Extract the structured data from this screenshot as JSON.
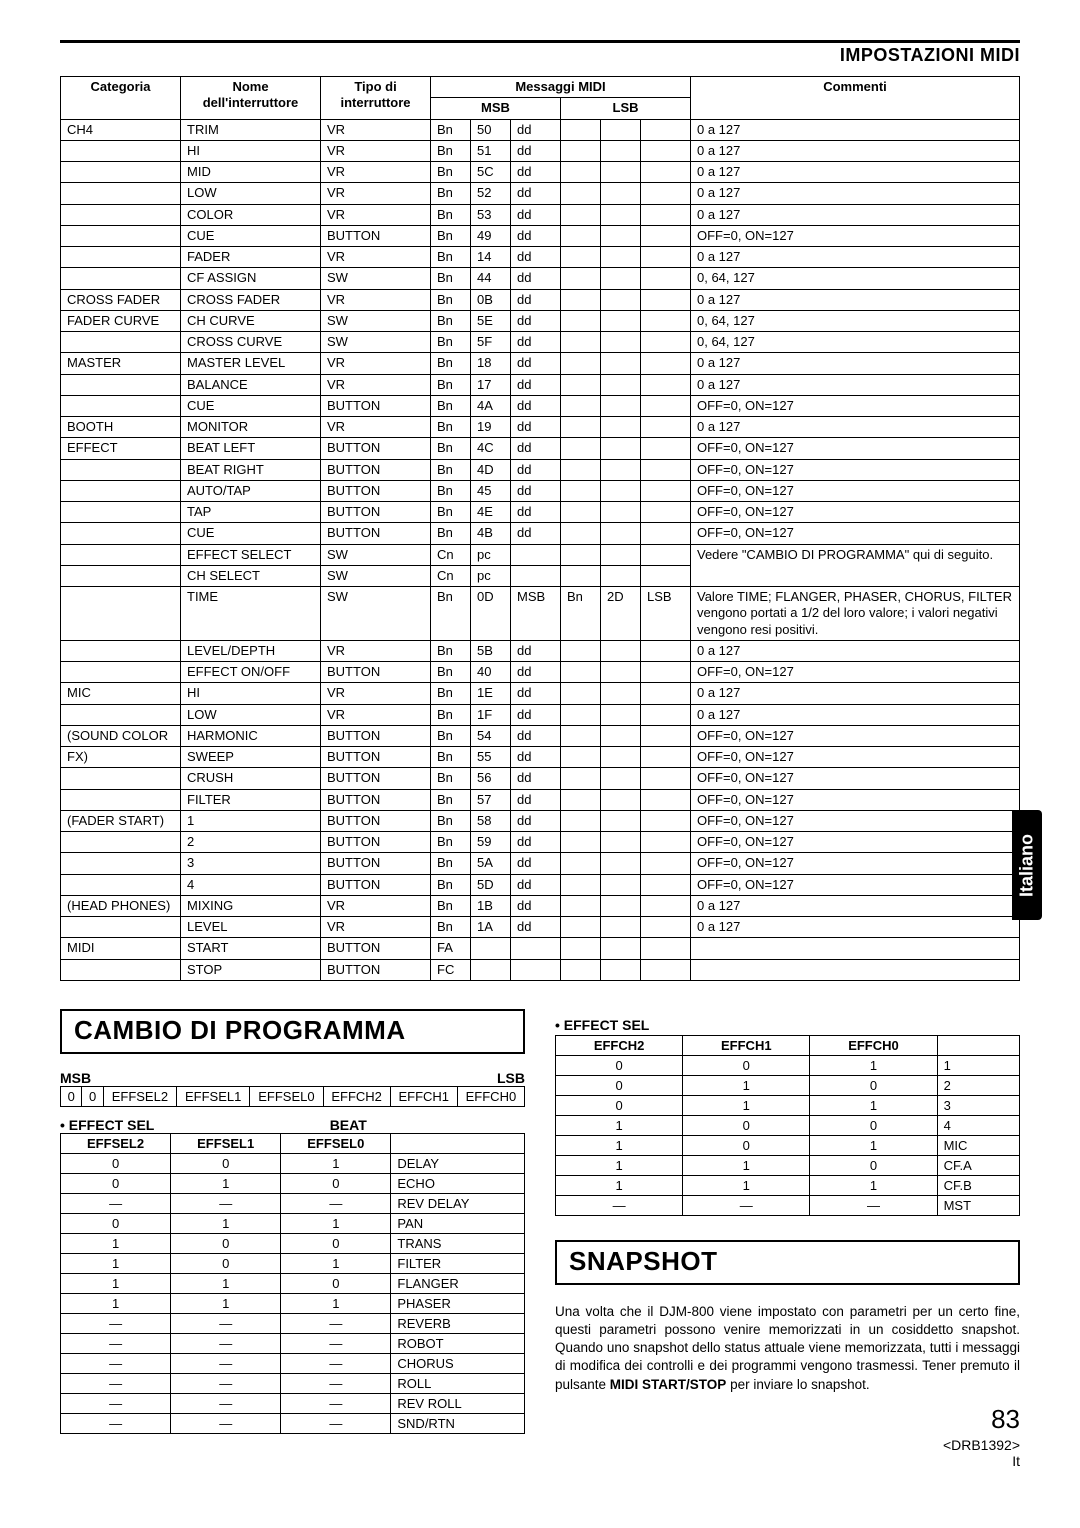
{
  "header": {
    "title": "IMPOSTAZIONI MIDI"
  },
  "side_tab": "Italiano",
  "main_table": {
    "headers": {
      "categoria": "Categoria",
      "nome": "Nome dell'interruttore",
      "tipo": "Tipo di interruttore",
      "messaggi": "Messaggi MIDI",
      "msb": "MSB",
      "lsb": "LSB",
      "commenti": "Commenti"
    },
    "rows": [
      {
        "cat": "CH4",
        "name": "TRIM",
        "type": "VR",
        "m": [
          "Bn",
          "50",
          "dd"
        ],
        "l": [
          "",
          "",
          ""
        ],
        "com": "0 a 127"
      },
      {
        "cat": "",
        "name": "HI",
        "type": "VR",
        "m": [
          "Bn",
          "51",
          "dd"
        ],
        "l": [
          "",
          "",
          ""
        ],
        "com": "0 a 127"
      },
      {
        "cat": "",
        "name": "MID",
        "type": "VR",
        "m": [
          "Bn",
          "5C",
          "dd"
        ],
        "l": [
          "",
          "",
          ""
        ],
        "com": "0 a 127"
      },
      {
        "cat": "",
        "name": "LOW",
        "type": "VR",
        "m": [
          "Bn",
          "52",
          "dd"
        ],
        "l": [
          "",
          "",
          ""
        ],
        "com": "0 a 127"
      },
      {
        "cat": "",
        "name": "COLOR",
        "type": "VR",
        "m": [
          "Bn",
          "53",
          "dd"
        ],
        "l": [
          "",
          "",
          ""
        ],
        "com": "0 a 127"
      },
      {
        "cat": "",
        "name": "CUE",
        "type": "BUTTON",
        "m": [
          "Bn",
          "49",
          "dd"
        ],
        "l": [
          "",
          "",
          ""
        ],
        "com": "OFF=0, ON=127"
      },
      {
        "cat": "",
        "name": "FADER",
        "type": "VR",
        "m": [
          "Bn",
          "14",
          "dd"
        ],
        "l": [
          "",
          "",
          ""
        ],
        "com": "0 a 127"
      },
      {
        "cat": "",
        "name": "CF ASSIGN",
        "type": "SW",
        "m": [
          "Bn",
          "44",
          "dd"
        ],
        "l": [
          "",
          "",
          ""
        ],
        "com": "0, 64, 127"
      },
      {
        "cat": "CROSS FADER",
        "name": "CROSS FADER",
        "type": "VR",
        "m": [
          "Bn",
          "0B",
          "dd"
        ],
        "l": [
          "",
          "",
          ""
        ],
        "com": "0 a 127"
      },
      {
        "cat": "FADER CURVE",
        "name": "CH CURVE",
        "type": "SW",
        "m": [
          "Bn",
          "5E",
          "dd"
        ],
        "l": [
          "",
          "",
          ""
        ],
        "com": "0, 64, 127"
      },
      {
        "cat": "",
        "name": "CROSS CURVE",
        "type": "SW",
        "m": [
          "Bn",
          "5F",
          "dd"
        ],
        "l": [
          "",
          "",
          ""
        ],
        "com": "0, 64, 127"
      },
      {
        "cat": "MASTER",
        "name": "MASTER LEVEL",
        "type": "VR",
        "m": [
          "Bn",
          "18",
          "dd"
        ],
        "l": [
          "",
          "",
          ""
        ],
        "com": "0 a 127"
      },
      {
        "cat": "",
        "name": "BALANCE",
        "type": "VR",
        "m": [
          "Bn",
          "17",
          "dd"
        ],
        "l": [
          "",
          "",
          ""
        ],
        "com": "0 a 127"
      },
      {
        "cat": "",
        "name": "CUE",
        "type": "BUTTON",
        "m": [
          "Bn",
          "4A",
          "dd"
        ],
        "l": [
          "",
          "",
          ""
        ],
        "com": "OFF=0, ON=127"
      },
      {
        "cat": "BOOTH",
        "name": "MONITOR",
        "type": "VR",
        "m": [
          "Bn",
          "19",
          "dd"
        ],
        "l": [
          "",
          "",
          ""
        ],
        "com": "0 a 127"
      },
      {
        "cat": "EFFECT",
        "name": "BEAT LEFT",
        "type": "BUTTON",
        "m": [
          "Bn",
          "4C",
          "dd"
        ],
        "l": [
          "",
          "",
          ""
        ],
        "com": "OFF=0, ON=127"
      },
      {
        "cat": "",
        "name": "BEAT RIGHT",
        "type": "BUTTON",
        "m": [
          "Bn",
          "4D",
          "dd"
        ],
        "l": [
          "",
          "",
          ""
        ],
        "com": "OFF=0, ON=127"
      },
      {
        "cat": "",
        "name": "AUTO/TAP",
        "type": "BUTTON",
        "m": [
          "Bn",
          "45",
          "dd"
        ],
        "l": [
          "",
          "",
          ""
        ],
        "com": "OFF=0, ON=127"
      },
      {
        "cat": "",
        "name": "TAP",
        "type": "BUTTON",
        "m": [
          "Bn",
          "4E",
          "dd"
        ],
        "l": [
          "",
          "",
          ""
        ],
        "com": "OFF=0, ON=127"
      },
      {
        "cat": "",
        "name": "CUE",
        "type": "BUTTON",
        "m": [
          "Bn",
          "4B",
          "dd"
        ],
        "l": [
          "",
          "",
          ""
        ],
        "com": "OFF=0, ON=127"
      },
      {
        "cat": "",
        "name": "EFFECT SELECT",
        "type": "SW",
        "m": [
          "Cn",
          "pc",
          ""
        ],
        "l": [
          "",
          "",
          ""
        ],
        "com": "Vedere \"CAMBIO DI",
        "merge_com_down": true
      },
      {
        "cat": "",
        "name": "CH SELECT",
        "type": "SW",
        "m": [
          "Cn",
          "pc",
          ""
        ],
        "l": [
          "",
          "",
          ""
        ],
        "com": "PROGRAMMA\" qui di seguito.",
        "merge_com_up": true
      },
      {
        "cat": "",
        "name": "TIME",
        "type": "SW",
        "m": [
          "Bn",
          "0D",
          "MSB"
        ],
        "l": [
          "Bn",
          "2D",
          "LSB"
        ],
        "com": "Valore TIME; FLANGER, PHASER, CHORUS, FILTER vengono portati a 1/2 del loro valore; i valori negativi vengono resi positivi."
      },
      {
        "cat": "",
        "name": "LEVEL/DEPTH",
        "type": "VR",
        "m": [
          "Bn",
          "5B",
          "dd"
        ],
        "l": [
          "",
          "",
          ""
        ],
        "com": "0 a 127"
      },
      {
        "cat": "",
        "name": "EFFECT ON/OFF",
        "type": "BUTTON",
        "m": [
          "Bn",
          "40",
          "dd"
        ],
        "l": [
          "",
          "",
          ""
        ],
        "com": "OFF=0, ON=127"
      },
      {
        "cat": "MIC",
        "name": "HI",
        "type": "VR",
        "m": [
          "Bn",
          "1E",
          "dd"
        ],
        "l": [
          "",
          "",
          ""
        ],
        "com": "0 a 127"
      },
      {
        "cat": "",
        "name": "LOW",
        "type": "VR",
        "m": [
          "Bn",
          "1F",
          "dd"
        ],
        "l": [
          "",
          "",
          ""
        ],
        "com": "0 a 127"
      },
      {
        "cat": "(SOUND COLOR",
        "name": "HARMONIC",
        "type": "BUTTON",
        "m": [
          "Bn",
          "54",
          "dd"
        ],
        "l": [
          "",
          "",
          ""
        ],
        "com": "OFF=0, ON=127"
      },
      {
        "cat": "FX)",
        "name": "SWEEP",
        "type": "BUTTON",
        "m": [
          "Bn",
          "55",
          "dd"
        ],
        "l": [
          "",
          "",
          ""
        ],
        "com": "OFF=0, ON=127"
      },
      {
        "cat": "",
        "name": "CRUSH",
        "type": "BUTTON",
        "m": [
          "Bn",
          "56",
          "dd"
        ],
        "l": [
          "",
          "",
          ""
        ],
        "com": "OFF=0, ON=127"
      },
      {
        "cat": "",
        "name": "FILTER",
        "type": "BUTTON",
        "m": [
          "Bn",
          "57",
          "dd"
        ],
        "l": [
          "",
          "",
          ""
        ],
        "com": "OFF=0, ON=127"
      },
      {
        "cat": "(FADER START)",
        "name": "1",
        "type": "BUTTON",
        "m": [
          "Bn",
          "58",
          "dd"
        ],
        "l": [
          "",
          "",
          ""
        ],
        "com": "OFF=0, ON=127"
      },
      {
        "cat": "",
        "name": "2",
        "type": "BUTTON",
        "m": [
          "Bn",
          "59",
          "dd"
        ],
        "l": [
          "",
          "",
          ""
        ],
        "com": "OFF=0, ON=127"
      },
      {
        "cat": "",
        "name": "3",
        "type": "BUTTON",
        "m": [
          "Bn",
          "5A",
          "dd"
        ],
        "l": [
          "",
          "",
          ""
        ],
        "com": "OFF=0, ON=127"
      },
      {
        "cat": "",
        "name": "4",
        "type": "BUTTON",
        "m": [
          "Bn",
          "5D",
          "dd"
        ],
        "l": [
          "",
          "",
          ""
        ],
        "com": "OFF=0, ON=127"
      },
      {
        "cat": "(HEAD PHONES)",
        "name": "MIXING",
        "type": "VR",
        "m": [
          "Bn",
          "1B",
          "dd"
        ],
        "l": [
          "",
          "",
          ""
        ],
        "com": "0 a 127"
      },
      {
        "cat": "",
        "name": "LEVEL",
        "type": "VR",
        "m": [
          "Bn",
          "1A",
          "dd"
        ],
        "l": [
          "",
          "",
          ""
        ],
        "com": "0 a 127"
      },
      {
        "cat": "MIDI",
        "name": "START",
        "type": "BUTTON",
        "m": [
          "FA",
          "",
          ""
        ],
        "l": [
          "",
          "",
          ""
        ],
        "com": ""
      },
      {
        "cat": "",
        "name": "STOP",
        "type": "BUTTON",
        "m": [
          "FC",
          "",
          ""
        ],
        "l": [
          "",
          "",
          ""
        ],
        "com": ""
      }
    ]
  },
  "cambio": {
    "title": "CAMBIO DI PROGRAMMA",
    "msb_label": "MSB",
    "lsb_label": "LSB",
    "msb_cells": [
      "0",
      "0",
      "EFFSEL2",
      "EFFSEL1",
      "EFFSEL0",
      "EFFCH2",
      "EFFCH1",
      "EFFCH0"
    ],
    "effect_sel_label": "• EFFECT SEL",
    "beat_label": "BEAT",
    "beat_headers": [
      "EFFSEL2",
      "EFFSEL1",
      "EFFSEL0",
      ""
    ],
    "beat_rows": [
      [
        "0",
        "0",
        "1",
        "DELAY"
      ],
      [
        "0",
        "1",
        "0",
        "ECHO"
      ],
      [
        "—",
        "—",
        "—",
        "REV DELAY"
      ],
      [
        "0",
        "1",
        "1",
        "PAN"
      ],
      [
        "1",
        "0",
        "0",
        "TRANS"
      ],
      [
        "1",
        "0",
        "1",
        "FILTER"
      ],
      [
        "1",
        "1",
        "0",
        "FLANGER"
      ],
      [
        "1",
        "1",
        "1",
        "PHASER"
      ],
      [
        "—",
        "—",
        "—",
        "REVERB"
      ],
      [
        "—",
        "—",
        "—",
        "ROBOT"
      ],
      [
        "—",
        "—",
        "—",
        "CHORUS"
      ],
      [
        "—",
        "—",
        "—",
        "ROLL"
      ],
      [
        "—",
        "—",
        "—",
        "REV ROLL"
      ],
      [
        "—",
        "—",
        "—",
        "SND/RTN"
      ]
    ]
  },
  "effsel_right": {
    "label": "• EFFECT SEL",
    "headers": [
      "EFFCH2",
      "EFFCH1",
      "EFFCH0",
      ""
    ],
    "rows": [
      [
        "0",
        "0",
        "1",
        "1"
      ],
      [
        "0",
        "1",
        "0",
        "2"
      ],
      [
        "0",
        "1",
        "1",
        "3"
      ],
      [
        "1",
        "0",
        "0",
        "4"
      ],
      [
        "1",
        "0",
        "1",
        "MIC"
      ],
      [
        "1",
        "1",
        "0",
        "CF.A"
      ],
      [
        "1",
        "1",
        "1",
        "CF.B"
      ],
      [
        "—",
        "—",
        "—",
        "MST"
      ]
    ]
  },
  "snapshot": {
    "title": "SNAPSHOT",
    "text_prefix": "Una volta che il DJM-800 viene impostato con parametri per un certo fine, questi parametri possono venire memorizzati in un cosiddetto snapshot. Quando uno snapshot dello status attuale viene memorizzata, tutti i messaggi di modifica dei controlli e dei programmi vengono trasmessi. Tener premuto il pulsante ",
    "bold": "MIDI START/STOP",
    "text_suffix": " per inviare lo snapshot."
  },
  "footer": {
    "page": "83",
    "doc": "<DRB1392>",
    "lang": "It"
  }
}
